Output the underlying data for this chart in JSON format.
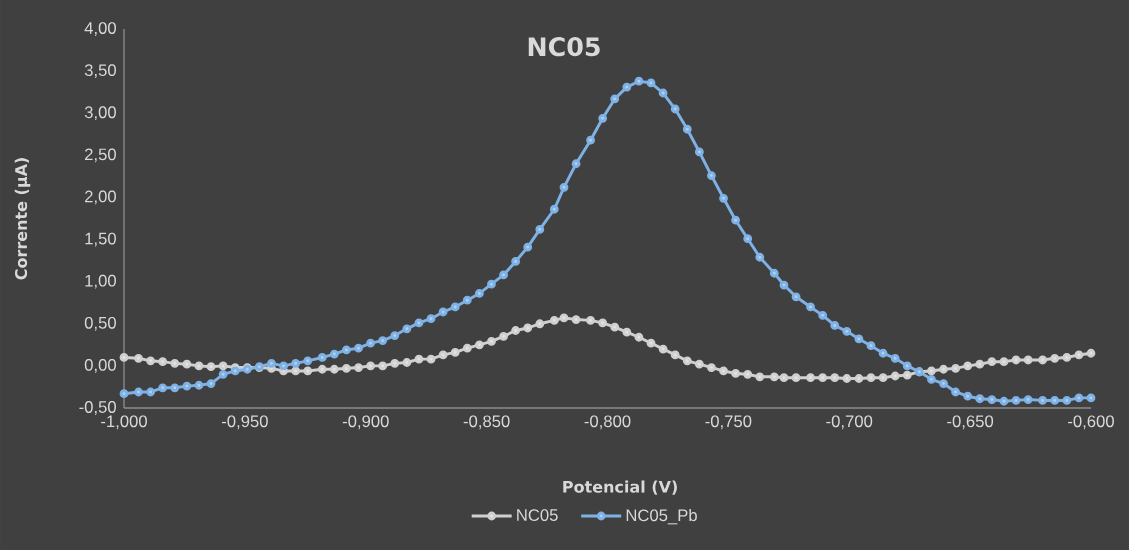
{
  "chart_data": {
    "type": "line",
    "title": "NC05",
    "xlabel": "Potencial (V)",
    "ylabel": "Corrente (µA)",
    "x": [
      -1.0,
      -0.994,
      -0.989,
      -0.984,
      -0.979,
      -0.974,
      -0.969,
      -0.964,
      -0.959,
      -0.954,
      -0.949,
      -0.944,
      -0.939,
      -0.934,
      -0.929,
      -0.924,
      -0.918,
      -0.913,
      -0.908,
      -0.903,
      -0.898,
      -0.893,
      -0.888,
      -0.883,
      -0.878,
      -0.873,
      -0.868,
      -0.863,
      -0.858,
      -0.853,
      -0.848,
      -0.843,
      -0.838,
      -0.833,
      -0.828,
      -0.822,
      -0.818,
      -0.813,
      -0.807,
      -0.802,
      -0.797,
      -0.792,
      -0.787,
      -0.782,
      -0.777,
      -0.772,
      -0.767,
      -0.762,
      -0.757,
      -0.752,
      -0.747,
      -0.742,
      -0.737,
      -0.731,
      -0.727,
      -0.722,
      -0.716,
      -0.711,
      -0.706,
      -0.701,
      -0.696,
      -0.691,
      -0.686,
      -0.681,
      -0.676,
      -0.671,
      -0.666,
      -0.661,
      -0.656,
      -0.651,
      -0.646,
      -0.641,
      -0.636,
      -0.631,
      -0.626,
      -0.62,
      -0.615,
      -0.61,
      -0.605,
      -0.6
    ],
    "series": [
      {
        "name": "NC05",
        "color": "#d0d0d0",
        "values": [
          0.1,
          0.09,
          0.06,
          0.05,
          0.03,
          0.02,
          0.0,
          -0.01,
          0.0,
          -0.02,
          -0.02,
          -0.02,
          -0.03,
          -0.06,
          -0.06,
          -0.06,
          -0.04,
          -0.04,
          -0.03,
          -0.02,
          0.0,
          0.0,
          0.03,
          0.04,
          0.08,
          0.08,
          0.13,
          0.16,
          0.21,
          0.25,
          0.29,
          0.35,
          0.42,
          0.45,
          0.5,
          0.54,
          0.57,
          0.55,
          0.54,
          0.51,
          0.46,
          0.4,
          0.34,
          0.27,
          0.2,
          0.13,
          0.06,
          0.02,
          -0.02,
          -0.06,
          -0.09,
          -0.1,
          -0.13,
          -0.13,
          -0.14,
          -0.14,
          -0.14,
          -0.14,
          -0.14,
          -0.15,
          -0.15,
          -0.14,
          -0.14,
          -0.12,
          -0.11,
          -0.07,
          -0.06,
          -0.04,
          -0.03,
          0.0,
          0.02,
          0.05,
          0.05,
          0.07,
          0.07,
          0.07,
          0.09,
          0.1,
          0.13,
          0.15
        ]
      },
      {
        "name": "NC05_Pb",
        "color": "#7eb2e6",
        "values": [
          -0.33,
          -0.31,
          -0.31,
          -0.26,
          -0.26,
          -0.24,
          -0.23,
          -0.21,
          -0.1,
          -0.06,
          -0.04,
          -0.01,
          0.03,
          0.0,
          0.03,
          0.06,
          0.1,
          0.14,
          0.19,
          0.21,
          0.27,
          0.3,
          0.36,
          0.44,
          0.51,
          0.56,
          0.64,
          0.7,
          0.78,
          0.86,
          0.97,
          1.08,
          1.24,
          1.41,
          1.62,
          1.86,
          2.12,
          2.4,
          2.68,
          2.94,
          3.17,
          3.31,
          3.38,
          3.36,
          3.24,
          3.05,
          2.81,
          2.54,
          2.26,
          1.99,
          1.73,
          1.51,
          1.29,
          1.1,
          0.96,
          0.82,
          0.7,
          0.6,
          0.48,
          0.41,
          0.32,
          0.24,
          0.15,
          0.09,
          0.0,
          -0.07,
          -0.16,
          -0.21,
          -0.31,
          -0.36,
          -0.39,
          -0.4,
          -0.42,
          -0.41,
          -0.4,
          -0.41,
          -0.41,
          -0.41,
          -0.38,
          -0.38
        ]
      }
    ],
    "xlim": [
      -1.0,
      -0.6
    ],
    "ylim": [
      -0.5,
      4.0
    ],
    "xticks": [
      {
        "value": -1.0,
        "label": "-1,000"
      },
      {
        "value": -0.95,
        "label": "-0,950"
      },
      {
        "value": -0.9,
        "label": "-0,900"
      },
      {
        "value": -0.85,
        "label": "-0,850"
      },
      {
        "value": -0.8,
        "label": "-0,800"
      },
      {
        "value": -0.75,
        "label": "-0,750"
      },
      {
        "value": -0.7,
        "label": "-0,700"
      },
      {
        "value": -0.65,
        "label": "-0,650"
      },
      {
        "value": -0.6,
        "label": "-0,600"
      }
    ],
    "yticks": [
      {
        "value": -0.5,
        "label": "-0,50"
      },
      {
        "value": 0,
        "label": "0,00"
      },
      {
        "value": 0.5,
        "label": "0,50"
      },
      {
        "value": 1.0,
        "label": "1,00"
      },
      {
        "value": 1.5,
        "label": "1,50"
      },
      {
        "value": 2.0,
        "label": "2,00"
      },
      {
        "value": 2.5,
        "label": "2,50"
      },
      {
        "value": 3.0,
        "label": "3,00"
      },
      {
        "value": 3.5,
        "label": "3,50"
      },
      {
        "value": 4.0,
        "label": "4,00"
      }
    ],
    "grid": false,
    "legend": "bottom",
    "marker": "circle",
    "line_style": "solid"
  }
}
